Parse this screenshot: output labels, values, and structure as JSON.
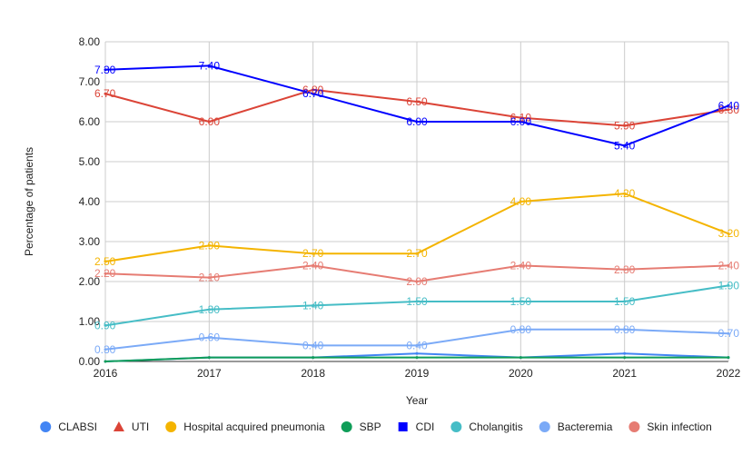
{
  "chart_data": {
    "type": "line",
    "xlabel": "Year",
    "ylabel": "Percentage of patients",
    "ylim": [
      0,
      8
    ],
    "yticks": [
      "0.00",
      "1.00",
      "2.00",
      "3.00",
      "4.00",
      "5.00",
      "6.00",
      "7.00",
      "8.00"
    ],
    "x": [
      "2016",
      "2017",
      "2018",
      "2019",
      "2020",
      "2021",
      "2022"
    ],
    "grid": true,
    "legend_position": "bottom",
    "series": [
      {
        "name": "CLABSI",
        "color": "#4285f4",
        "marker": "circle",
        "values": [
          0.0,
          0.1,
          0.1,
          0.2,
          0.1,
          0.2,
          0.1
        ],
        "labels": []
      },
      {
        "name": "UTI",
        "color": "#db4437",
        "marker": "triangle",
        "values": [
          6.7,
          6.0,
          6.8,
          6.5,
          6.1,
          5.9,
          6.3
        ],
        "labels": [
          "6.70",
          "6.00",
          "6.80",
          "6.50",
          "6.10",
          "5.90",
          "6.30"
        ]
      },
      {
        "name": "Hospital acquired pneumonia",
        "color": "#f4b400",
        "marker": "circle",
        "values": [
          2.5,
          2.9,
          2.7,
          2.7,
          4.0,
          4.2,
          3.2
        ],
        "labels": [
          "2.50",
          "2.90",
          "2.70",
          "2.70",
          "4.00",
          "4.20",
          "3.20"
        ]
      },
      {
        "name": "SBP",
        "color": "#0f9d58",
        "marker": "circle",
        "values": [
          0.0,
          0.1,
          0.1,
          0.1,
          0.1,
          0.1,
          0.1
        ],
        "labels": []
      },
      {
        "name": "CDI",
        "color": "#0000ff",
        "marker": "square",
        "values": [
          7.3,
          7.4,
          6.7,
          6.0,
          6.0,
          5.4,
          6.4
        ],
        "labels": [
          "7.30",
          "7.40",
          "6.70",
          "6.00",
          "6.00",
          "5.40",
          "6.40"
        ]
      },
      {
        "name": "Cholangitis",
        "color": "#46bdc6",
        "marker": "circle",
        "values": [
          0.9,
          1.3,
          1.4,
          1.5,
          1.5,
          1.5,
          1.9
        ],
        "labels": [
          "0.90",
          "1.30",
          "1.40",
          "1.50",
          "1.50",
          "1.50",
          "1.90"
        ]
      },
      {
        "name": "Bacteremia",
        "color": "#7baaf7",
        "marker": "circle",
        "values": [
          0.3,
          0.6,
          0.4,
          0.4,
          0.8,
          0.8,
          0.7
        ],
        "labels": [
          "0.30",
          "0.60",
          "0.40",
          "0.40",
          "0.80",
          "0.80",
          "0.70"
        ]
      },
      {
        "name": "Skin infection",
        "color": "#e67c73",
        "marker": "circle",
        "values": [
          2.2,
          2.1,
          2.4,
          2.0,
          2.4,
          2.3,
          2.4
        ],
        "labels": [
          "2.20",
          "2.10",
          "2.40",
          "2.00",
          "2.40",
          "2.30",
          "2.40"
        ]
      }
    ]
  }
}
